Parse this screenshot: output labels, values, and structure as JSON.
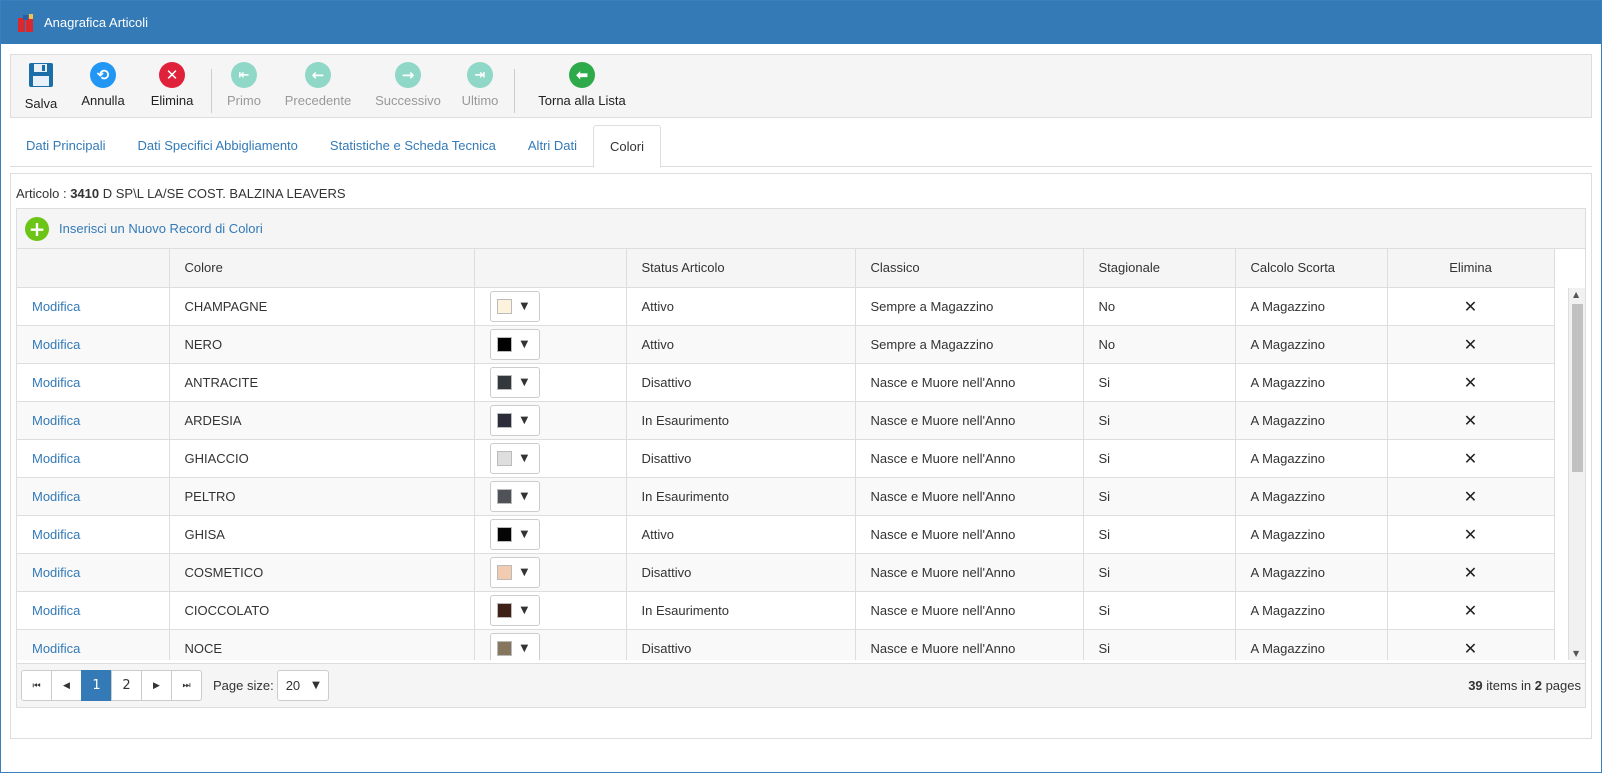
{
  "window": {
    "title": "Anagrafica Articoli"
  },
  "toolbar": {
    "save": "Salva",
    "cancel": "Annulla",
    "delete": "Elimina",
    "first": "Primo",
    "previous": "Precedente",
    "next": "Successivo",
    "last": "Ultimo",
    "back_to_list": "Torna alla Lista"
  },
  "tabs": [
    {
      "label": "Dati Principali"
    },
    {
      "label": "Dati Specifici Abbigliamento"
    },
    {
      "label": "Statistiche e Scheda Tecnica"
    },
    {
      "label": "Altri Dati"
    },
    {
      "label": "Colori",
      "active": true
    }
  ],
  "article": {
    "label": "Articolo :",
    "code": "3410",
    "description": "D SP\\L LA/SE COST. BALZINA LEAVERS"
  },
  "grid": {
    "add_label": "Inserisci un Nuovo Record di Colori",
    "columns": [
      "",
      "Colore",
      "",
      "Status Articolo",
      "Classico",
      "Stagionale",
      "Calcolo Scorta",
      "Elimina"
    ],
    "edit_label": "Modifica",
    "delete_symbol": "✕",
    "rows": [
      {
        "colore": "CHAMPAGNE",
        "swatch": "#fdf3dc",
        "status": "Attivo",
        "classico": "Sempre a Magazzino",
        "stagionale": "No",
        "scorta": "A Magazzino"
      },
      {
        "colore": "NERO",
        "swatch": "#000000",
        "status": "Attivo",
        "classico": "Sempre a Magazzino",
        "stagionale": "No",
        "scorta": "A Magazzino"
      },
      {
        "colore": "ANTRACITE",
        "swatch": "#33383c",
        "status": "Disattivo",
        "classico": "Nasce e Muore nell'Anno",
        "stagionale": "Si",
        "scorta": "A Magazzino"
      },
      {
        "colore": "ARDESIA",
        "swatch": "#2b2d3a",
        "status": "In Esaurimento",
        "classico": "Nasce e Muore nell'Anno",
        "stagionale": "Si",
        "scorta": "A Magazzino"
      },
      {
        "colore": "GHIACCIO",
        "swatch": "#dedede",
        "status": "Disattivo",
        "classico": "Nasce e Muore nell'Anno",
        "stagionale": "Si",
        "scorta": "A Magazzino"
      },
      {
        "colore": "PELTRO",
        "swatch": "#4f5256",
        "status": "In Esaurimento",
        "classico": "Nasce e Muore nell'Anno",
        "stagionale": "Si",
        "scorta": "A Magazzino"
      },
      {
        "colore": "GHISA",
        "swatch": "#050505",
        "status": "Attivo",
        "classico": "Nasce e Muore nell'Anno",
        "stagionale": "Si",
        "scorta": "A Magazzino"
      },
      {
        "colore": "COSMETICO",
        "swatch": "#f1ccb0",
        "status": "Disattivo",
        "classico": "Nasce e Muore nell'Anno",
        "stagionale": "Si",
        "scorta": "A Magazzino"
      },
      {
        "colore": "CIOCCOLATO",
        "swatch": "#3f2017",
        "status": "In Esaurimento",
        "classico": "Nasce e Muore nell'Anno",
        "stagionale": "Si",
        "scorta": "A Magazzino"
      },
      {
        "colore": "NOCE",
        "swatch": "#85765d",
        "status": "Disattivo",
        "classico": "Nasce e Muore nell'Anno",
        "stagionale": "Si",
        "scorta": "A Magazzino"
      }
    ]
  },
  "pager": {
    "pages": [
      "1",
      "2"
    ],
    "current_page": "1",
    "page_size_label": "Page size:",
    "page_size": "20",
    "items_total": "39",
    "items_text": "items in",
    "pages_total": "2",
    "pages_text": "pages"
  },
  "colors": {
    "titlebar": "#337ab7",
    "save": "#1a6fa8",
    "cancel": "#2196f3",
    "delete": "#e0213a",
    "nav_disabled": "#8fd8c8",
    "back": "#2eaa4a",
    "link": "#337ab7"
  }
}
